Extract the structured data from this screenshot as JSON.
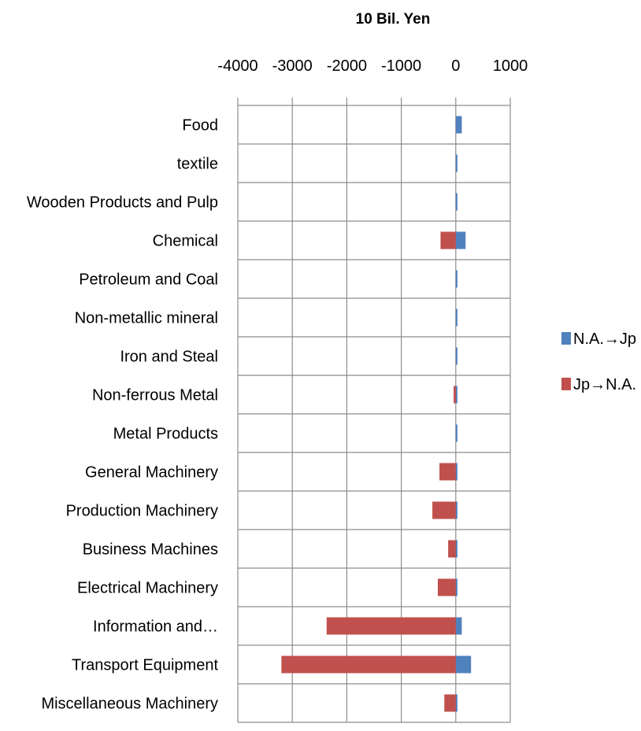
{
  "chart_data": {
    "type": "bar",
    "orientation": "horizontal",
    "stacked": false,
    "title": "10 Bil. Yen",
    "xlim": [
      -4000,
      1000
    ],
    "xticks": [
      "-4000",
      "-3000",
      "-2000",
      "-1000",
      "0",
      "1000"
    ],
    "xtick_values": [
      -4000,
      -3000,
      -2000,
      -1000,
      0,
      1000
    ],
    "x_axis_position": "top",
    "grid": true,
    "legend_position": "right",
    "categories": [
      "Food",
      "textile",
      "Wooden Products and Pulp",
      "Chemical",
      "Petroleum and Coal",
      "Non-metallic mineral",
      "Iron and Steal",
      "Non-ferrous Metal",
      "Metal Products",
      "General Machinery",
      "Production Machinery",
      "Business Machines",
      "Electrical Machinery",
      "Information and…",
      "Transport Equipment",
      "Miscellaneous Machinery"
    ],
    "series": [
      {
        "name": "N.A.→Jp",
        "color": "#4f81bd",
        "values": [
          110,
          30,
          30,
          180,
          30,
          30,
          30,
          30,
          30,
          30,
          30,
          30,
          30,
          110,
          280,
          30
        ]
      },
      {
        "name": "Jp→N.A.",
        "color": "#c0504d",
        "values": [
          0,
          0,
          0,
          -280,
          0,
          0,
          0,
          -40,
          0,
          -300,
          -430,
          -140,
          -330,
          -2370,
          -3200,
          -210
        ]
      }
    ]
  }
}
